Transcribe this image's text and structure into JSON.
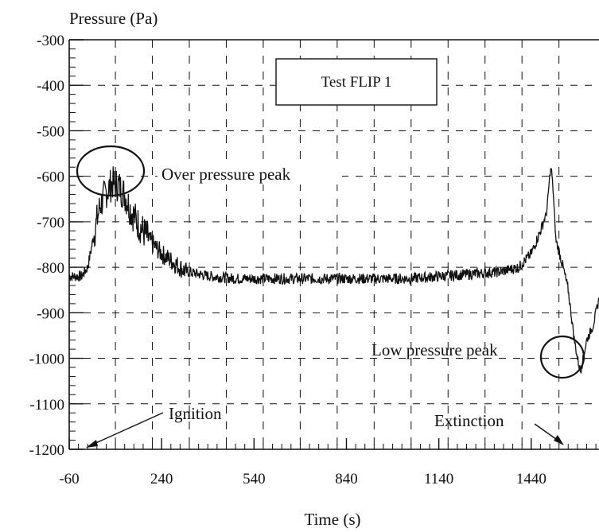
{
  "chart_data": {
    "type": "line",
    "ylabel": "Pressure (Pa)",
    "xlabel": "Time (s)",
    "xlim": [
      -60,
      1660
    ],
    "ylim": [
      -1200,
      -300
    ],
    "x_ticks": [
      -60,
      240,
      540,
      840,
      1140,
      1440
    ],
    "y_ticks": [
      -300,
      -400,
      -500,
      -600,
      -700,
      -800,
      -900,
      -1000,
      -1100,
      -1200
    ],
    "x_tick_labels": [
      "-60",
      "240",
      "540",
      "840",
      "1140",
      "1440"
    ],
    "y_tick_labels": [
      "-300",
      "-400",
      "-500",
      "-600",
      "-700",
      "-800",
      "-900",
      "-1000",
      "-1100",
      "-1200"
    ],
    "grid": true,
    "legend_box": "Test FLIP 1",
    "annotations": {
      "over_pressure": "Over pressure peak",
      "low_pressure": "Low pressure peak",
      "ignition": "Ignition",
      "extinction": "Extinction"
    },
    "series": [
      {
        "x": [
          -60,
          -20,
          0,
          20,
          40,
          60,
          80,
          100,
          120,
          140,
          160,
          180,
          200,
          240,
          280,
          320,
          360,
          400,
          480,
          540,
          640,
          740,
          840,
          940,
          1040,
          1140,
          1240,
          1340,
          1400,
          1440,
          1470,
          1490,
          1500,
          1505,
          1510,
          1520,
          1540,
          1560,
          1580,
          1590,
          1600,
          1620,
          1640,
          1660
        ],
        "y": [
          -820,
          -820,
          -800,
          -730,
          -665,
          -635,
          -615,
          -620,
          -640,
          -675,
          -700,
          -720,
          -740,
          -770,
          -790,
          -810,
          -815,
          -820,
          -825,
          -825,
          -825,
          -825,
          -825,
          -825,
          -825,
          -820,
          -815,
          -810,
          -800,
          -770,
          -720,
          -680,
          -600,
          -580,
          -620,
          -740,
          -790,
          -850,
          -960,
          -1000,
          -1030,
          -960,
          -930,
          -870
        ]
      }
    ]
  }
}
